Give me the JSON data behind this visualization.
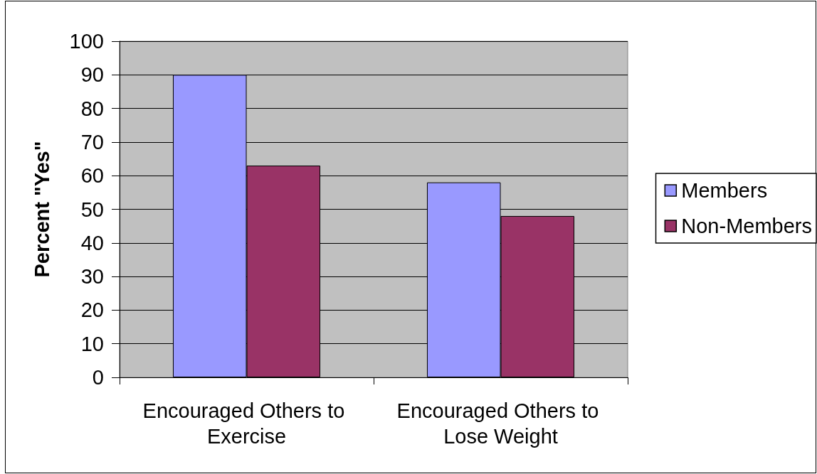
{
  "chart_data": {
    "type": "bar",
    "categories": [
      "Encouraged Others to Exercise",
      "Encouraged Others to Lose Weight"
    ],
    "series": [
      {
        "name": "Members",
        "color": "#9999ff",
        "values": [
          90,
          58
        ]
      },
      {
        "name": "Non-Members",
        "color": "#993366",
        "values": [
          63,
          48
        ]
      }
    ],
    "ylabel": "Percent \"Yes\"",
    "ylim": [
      0,
      100
    ],
    "yticks": [
      0,
      10,
      20,
      30,
      40,
      50,
      60,
      70,
      80,
      90,
      100
    ],
    "grid": "y",
    "legend": "right"
  }
}
